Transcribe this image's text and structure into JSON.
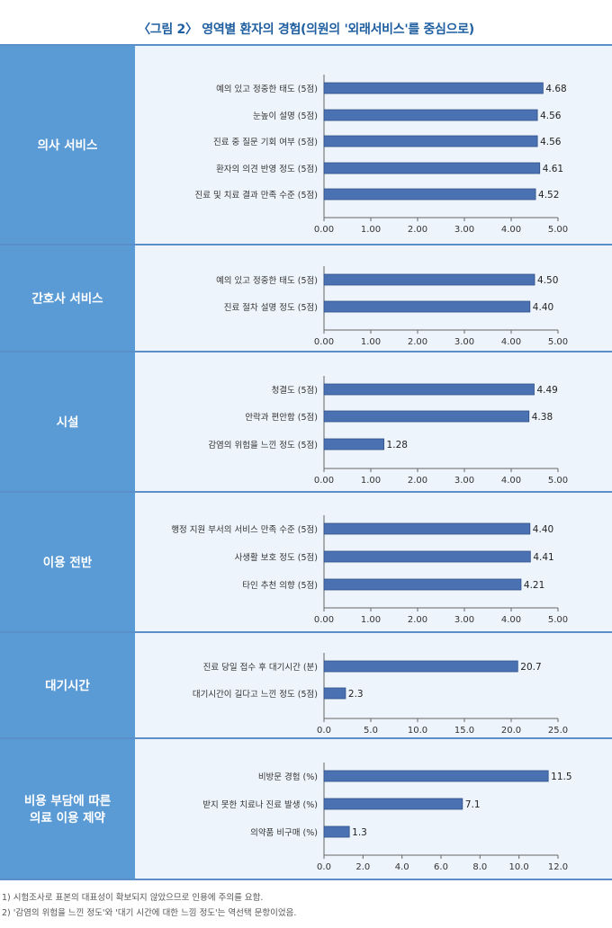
{
  "figure_title": "〈그림 2〉 영역별 환자의 경험(의원의 '외래서비스'를 중심으로)",
  "footnotes": [
    "1) 시험조사로 표본의 대표성이 확보되지 않았으므로 인용에 주의를 요함.",
    "2) '감염의 위험을 느낀 정도'와 '대기 시간에 대한 느낌 정도'는 역선택 문항이었음."
  ],
  "colors": {
    "panel_label_bg": "#5b9bd5",
    "panel_bg": "#eef4fb",
    "bar": "#4a72b3",
    "bar_border": "#2f4f86",
    "divider": "#5b8fc9"
  },
  "chart_data": [
    {
      "type": "bar",
      "orientation": "horizontal",
      "panel_label": "의사 서비스",
      "categories": [
        "예의 있고 정중한 태도 (5점)",
        "눈높이 설명 (5점)",
        "진료 중 질문 기회 여부 (5점)",
        "환자의 의견 반영 정도 (5점)",
        "진료 및 치료 결과 만족 수준 (5점)"
      ],
      "values": [
        4.68,
        4.56,
        4.56,
        4.61,
        4.52
      ],
      "value_labels": [
        "4.68",
        "4.56",
        "4.56",
        "4.61",
        "4.52"
      ],
      "xlim": [
        0,
        5
      ],
      "xticks": [
        "0.00",
        "1.00",
        "2.00",
        "3.00",
        "4.00",
        "5.00"
      ]
    },
    {
      "type": "bar",
      "orientation": "horizontal",
      "panel_label": "간호사 서비스",
      "categories": [
        "예의 있고 정중한 태도 (5점)",
        "진료 절차 설명 정도 (5점)"
      ],
      "values": [
        4.5,
        4.4
      ],
      "value_labels": [
        "4.50",
        "4.40"
      ],
      "xlim": [
        0,
        5
      ],
      "xticks": [
        "0.00",
        "1.00",
        "2.00",
        "3.00",
        "4.00",
        "5.00"
      ]
    },
    {
      "type": "bar",
      "orientation": "horizontal",
      "panel_label": "시설",
      "categories": [
        "청결도 (5점)",
        "안락과 편안함 (5점)",
        "감염의 위험을 느낀 정도 (5점)"
      ],
      "values": [
        4.49,
        4.38,
        1.28
      ],
      "value_labels": [
        "4.49",
        "4.38",
        "1.28"
      ],
      "xlim": [
        0,
        5
      ],
      "xticks": [
        "0.00",
        "1.00",
        "2.00",
        "3.00",
        "4.00",
        "5.00"
      ]
    },
    {
      "type": "bar",
      "orientation": "horizontal",
      "panel_label": "이용 전반",
      "categories": [
        "행정 지원 부서의 서비스 만족 수준 (5점)",
        "사생활 보호 정도 (5점)",
        "타인 추천 의향 (5점)"
      ],
      "values": [
        4.4,
        4.41,
        4.21
      ],
      "value_labels": [
        "4.40",
        "4.41",
        "4.21"
      ],
      "xlim": [
        0,
        5
      ],
      "xticks": [
        "0.00",
        "1.00",
        "2.00",
        "3.00",
        "4.00",
        "5.00"
      ]
    },
    {
      "type": "bar",
      "orientation": "horizontal",
      "panel_label": "대기시간",
      "categories": [
        "진료 당일 접수 후 대기시간 (분)",
        "대기시간이 길다고 느낀 정도 (5점)"
      ],
      "values": [
        20.7,
        2.3
      ],
      "value_labels": [
        "20.7",
        "2.3"
      ],
      "xlim": [
        0,
        25
      ],
      "xticks": [
        "0.0",
        "5.0",
        "10.0",
        "15.0",
        "20.0",
        "25.0"
      ]
    },
    {
      "type": "bar",
      "orientation": "horizontal",
      "panel_label": "비용 부담에 따른\n의료 이용 제약",
      "categories": [
        "비방문 경험 (%)",
        "받지 못한 치료나 진료 발생 (%)",
        "의약품 비구매 (%)"
      ],
      "values": [
        11.5,
        7.1,
        1.3
      ],
      "value_labels": [
        "11.5",
        "7.1",
        "1.3"
      ],
      "xlim": [
        0,
        12
      ],
      "xticks": [
        "0.0",
        "2.0",
        "4.0",
        "6.0",
        "8.0",
        "10.0",
        "12.0"
      ]
    }
  ]
}
